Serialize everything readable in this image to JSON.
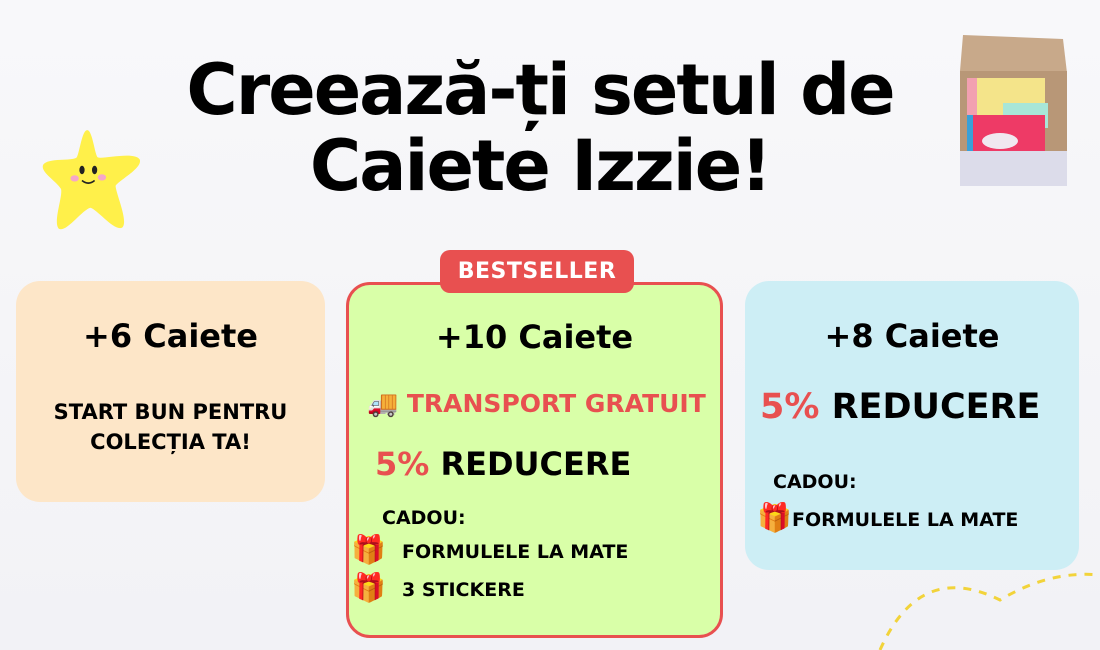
{
  "title": {
    "line1": "Creează-ți setul de",
    "line2": "Caiete Izzie!"
  },
  "decor": {
    "star": "smiling-star-icon",
    "box": "notebook-box-image"
  },
  "colors": {
    "accent_red": "#e85050",
    "card1_bg": "#fde6c8",
    "card2_bg": "#d9ffa8",
    "card3_bg": "#cdeef5",
    "star": "#fff04a"
  },
  "cards": [
    {
      "heading": "+6 Caiete",
      "line1": "START BUN PENTRU",
      "line2": "COLECȚIA TA!"
    },
    {
      "badge": "BESTSELLER",
      "heading": "+10 Caiete",
      "shipping_icon": "🚚",
      "shipping": "TRANSPORT GRATUIT",
      "discount_pct": "5%",
      "discount_label": "REDUCERE",
      "gift_label": "CADOU:",
      "gift_icon": "🎁",
      "gifts": [
        "FORMULELE LA MATE",
        "3 STICKERE"
      ]
    },
    {
      "heading": "+8 Caiete",
      "discount_pct": "5%",
      "discount_label": "REDUCERE",
      "gift_label": "CADOU:",
      "gift_icon": "🎁",
      "gifts": [
        "FORMULELE LA MATE"
      ]
    }
  ]
}
